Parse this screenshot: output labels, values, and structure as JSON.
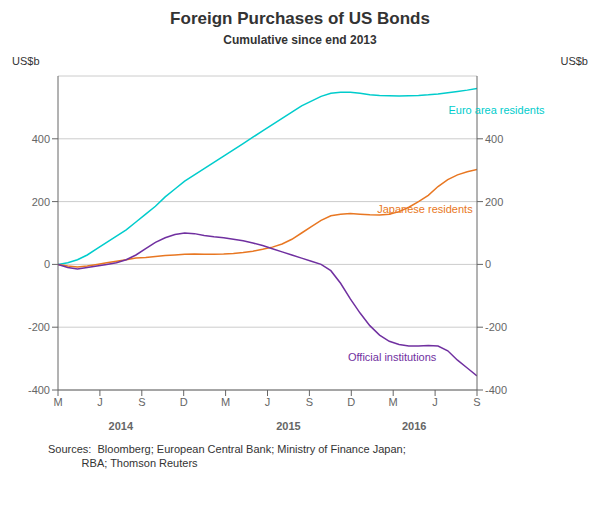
{
  "chart_data": {
    "type": "line",
    "title": "Foreign Purchases of US Bonds",
    "subtitle": "Cumulative since end 2013",
    "ylabel": "US$b",
    "y2label": "US$b",
    "source": "Sources:  Bloomberg; European Central Bank; Ministry of Finance Japan;\n           RBA; Thomson Reuters",
    "x": [
      0,
      0.232558,
      0.465116,
      0.697674,
      0.930233,
      1.162791,
      1.395349,
      1.627907,
      1.860465,
      2.093023,
      2.325581,
      2.55814,
      2.790698,
      3.023256,
      3.255814,
      3.488372,
      3.72093,
      3.953488,
      4.186047,
      4.418605,
      4.651163,
      4.883721,
      5.116279,
      5.348837,
      5.581395,
      5.813953,
      6.046512,
      6.27907,
      6.511628,
      6.744186,
      6.976744,
      7.209302,
      7.44186,
      7.674419,
      7.906977,
      8.139535,
      8.372093,
      8.604651,
      8.837209,
      9.069767,
      9.302326,
      9.534884,
      9.767442,
      10
    ],
    "xlim": [
      0,
      10
    ],
    "xticks": [
      {
        "value": 0,
        "label": "M"
      },
      {
        "value": 1,
        "label": "J"
      },
      {
        "value": 2,
        "label": "S"
      },
      {
        "value": 3,
        "label": "D"
      },
      {
        "value": 4,
        "label": "M"
      },
      {
        "value": 5,
        "label": "J"
      },
      {
        "value": 6,
        "label": "S"
      },
      {
        "value": 7,
        "label": "D"
      },
      {
        "value": 8,
        "label": "M"
      },
      {
        "value": 9,
        "label": "J"
      },
      {
        "value": 10,
        "label": "S"
      }
    ],
    "ylim": [
      -400,
      600
    ],
    "yticks": [
      -400,
      -200,
      0,
      200,
      400
    ],
    "y2lim": [
      -400,
      600
    ],
    "y2ticks": [
      -400,
      -200,
      0,
      200,
      400
    ],
    "grid": true,
    "series": [
      {
        "name": "Euro area residents",
        "color": "#00CCCC",
        "label_at": [
          9.2,
          490
        ],
        "values": [
          0,
          5,
          15,
          30,
          50,
          70,
          90,
          110,
          135,
          160,
          185,
          215,
          240,
          265,
          285,
          305,
          325,
          345,
          365,
          385,
          405,
          425,
          445,
          465,
          485,
          505,
          520,
          535,
          545,
          548,
          548,
          545,
          540,
          538,
          537,
          536,
          537,
          538,
          540,
          543,
          547,
          551,
          555,
          560
        ]
      },
      {
        "name": "Japanese residents",
        "color": "#E87722",
        "label_at": [
          7.5,
          175
        ],
        "values": [
          0,
          -5,
          -8,
          -5,
          0,
          5,
          10,
          15,
          20,
          22,
          25,
          28,
          30,
          32,
          33,
          32,
          32,
          33,
          35,
          38,
          42,
          48,
          55,
          65,
          80,
          100,
          120,
          140,
          155,
          160,
          162,
          160,
          158,
          157,
          160,
          168,
          182,
          200,
          220,
          248,
          270,
          285,
          295,
          302
        ]
      },
      {
        "name": "Official institutions",
        "color": "#7030A0",
        "label_at": [
          6.8,
          -295
        ],
        "values": [
          0,
          -10,
          -15,
          -10,
          -5,
          0,
          5,
          15,
          30,
          50,
          70,
          85,
          95,
          100,
          98,
          92,
          88,
          85,
          80,
          75,
          68,
          60,
          50,
          40,
          30,
          20,
          10,
          0,
          -20,
          -60,
          -110,
          -155,
          -195,
          -225,
          -245,
          -255,
          -260,
          -260,
          -258,
          -260,
          -275,
          -305,
          -330,
          -355
        ]
      }
    ],
    "annotations": [
      {
        "text": "2014",
        "x": 1.5
      },
      {
        "text": "2015",
        "x": 5.5
      },
      {
        "text": "2016",
        "x": 8.5
      }
    ]
  }
}
